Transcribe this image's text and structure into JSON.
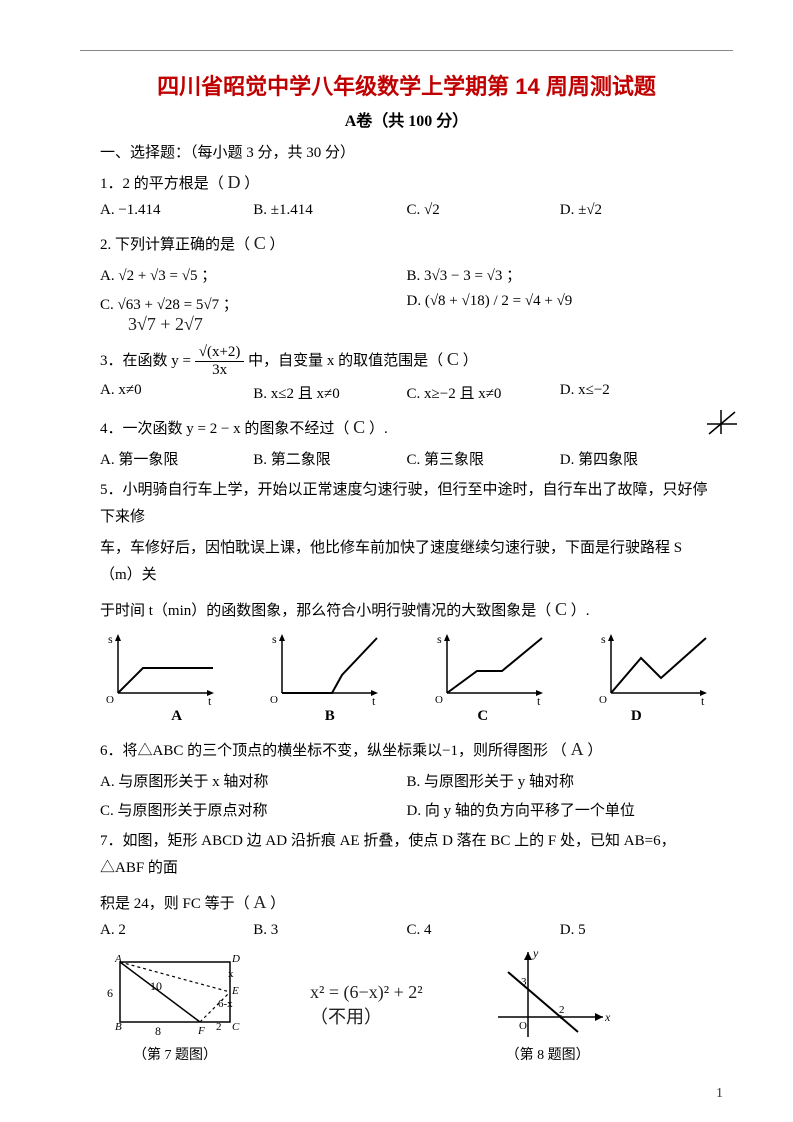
{
  "title": "四川省昭觉中学八年级数学上学期第 14 周周测试题",
  "subtitle": "A卷（共 100 分）",
  "section1": "一、选择题：（每小题 3 分，共 30 分）",
  "q1": {
    "stem": "1．2 的平方根是（",
    "ans": "D",
    "close": "）",
    "A": "A. −1.414",
    "B": "B.  ±1.414",
    "C": "C.  √2",
    "D": "D.  ±√2"
  },
  "q2": {
    "stem": "2. 下列计算正确的是（",
    "ans": "C",
    "close": "）",
    "A": "A. √2 + √3 = √5 ；",
    "B": "B. 3√3 − 3 = √3 ；",
    "C": "C. √63 + √28 = 5√7 ；",
    "D": "D. (√8 + √18) / 2 = √4 + √9",
    "hand": "3√7 + 2√7"
  },
  "q3": {
    "pre": "3．在函数 y = ",
    "frac_top": "√(x+2)",
    "frac_bot": "3x",
    "post": " 中，自变量 x 的取值范围是（",
    "ans": "C",
    "close": "）",
    "A": "A.  x≠0",
    "B": "B.  x≤2 且 x≠0",
    "C": "C.  x≥−2 且 x≠0",
    "D": "D.  x≤−2"
  },
  "q4": {
    "stem": "4．一次函数 y = 2 − x 的图象不经过（",
    "ans": "C",
    "close": "）.",
    "A": "A.  第一象限",
    "B": "B.  第二象限",
    "C": "C.  第三象限",
    "D": "D.  第四象限"
  },
  "q5": {
    "l1": "5．小明骑自行车上学，开始以正常速度匀速行驶，但行至中途时，自行车出了故障，只好停下来修",
    "l2": "车，车修好后，因怕耽误上课，他比修车前加快了速度继续匀速行驶，下面是行驶路程 S（m）关",
    "l3": "于时间 t（min）的函数图象，那么符合小明行驶情况的大致图象是（",
    "ans": "C",
    "close": "）.",
    "labelA": "A",
    "labelB": "B",
    "labelC": "C",
    "labelD": "D"
  },
  "q6": {
    "stem": "6．将△ABC 的三个顶点的横坐标不变，纵坐标乘以−1，则所得图形  （",
    "ans": "A",
    "close": "）",
    "A": "A. 与原图形关于 x 轴对称",
    "B": "B. 与原图形关于 y 轴对称",
    "C": "C. 与原图形关于原点对称",
    "D": "D. 向 y 轴的负方向平移了一个单位"
  },
  "q7": {
    "l1": "7．如图，矩形 ABCD 边 AD 沿折痕 AE 折叠，使点 D 落在 BC 上的 F 处，已知 AB=6，△ABF 的面",
    "l2": "积是 24，则 FC 等于（",
    "ans": "A",
    "close": "）",
    "A": "A. 2",
    "B": "B. 3",
    "C": "C. 4",
    "D": "D. 5",
    "hand1": "x² = (6−x)² + 2²",
    "hand2": "（不用）",
    "fig7": "（第 7 题图）",
    "fig8": "（第 8 题图）"
  },
  "graphs": {
    "axes_color": "#000",
    "data": {
      "A": [
        [
          0,
          0
        ],
        [
          25,
          25
        ],
        [
          60,
          25
        ],
        [
          95,
          25
        ]
      ],
      "B": [
        [
          0,
          0
        ],
        [
          50,
          0
        ],
        [
          60,
          18
        ],
        [
          95,
          55
        ]
      ],
      "C": [
        [
          0,
          0
        ],
        [
          30,
          22
        ],
        [
          55,
          22
        ],
        [
          95,
          55
        ]
      ],
      "D": [
        [
          0,
          0
        ],
        [
          30,
          35
        ],
        [
          50,
          15
        ],
        [
          95,
          55
        ]
      ]
    }
  },
  "pagenum": "1",
  "colors": {
    "title": "#c00000",
    "text": "#000000",
    "hr": "#888888"
  }
}
